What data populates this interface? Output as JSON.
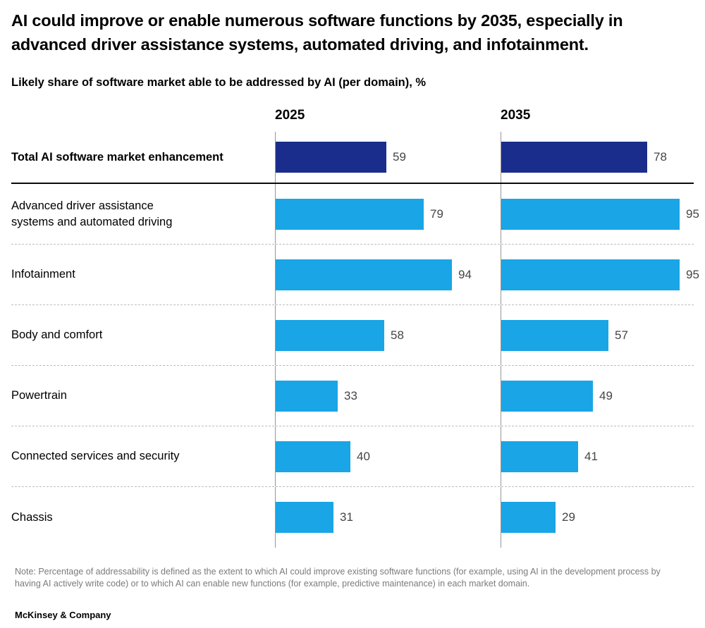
{
  "title": "AI could improve or enable numerous software functions by 2035, especially in\nadvanced driver assistance systems, automated driving, and infotainment.",
  "subtitle": "Likely share of software market able to be addressed by AI (per domain), %",
  "chart_data": {
    "type": "bar",
    "orientation": "horizontal",
    "columns": [
      "2025",
      "2035"
    ],
    "categories": [
      "Total AI software market enhancement",
      "Advanced driver assistance\nsystems and automated driving",
      "Infotainment",
      "Body and comfort",
      "Powertrain",
      "Connected services and security",
      "Chassis"
    ],
    "series": [
      {
        "name": "2025",
        "values": [
          59,
          79,
          94,
          58,
          33,
          40,
          31
        ]
      },
      {
        "name": "2035",
        "values": [
          78,
          95,
          95,
          57,
          49,
          41,
          29
        ]
      }
    ],
    "emphasis_index": 0,
    "xlim": [
      0,
      100
    ],
    "value_unit": "%",
    "legend_position": "none",
    "grid": "row-dividers",
    "colors": {
      "total_bar": "#1B2D8C",
      "domain_bar": "#19A5E6",
      "axis_line": "#969696",
      "divider_dashed": "#BDBDBD",
      "divider_solid": "#0A0A0A"
    }
  },
  "note": "Note: Percentage of addressability is defined as the extent to which AI could improve existing software functions (for example, using AI in the development process by having AI actively write code) or to which AI can enable new functions (for example, predictive maintenance) in each market domain.",
  "footer": "McKinsey & Company"
}
